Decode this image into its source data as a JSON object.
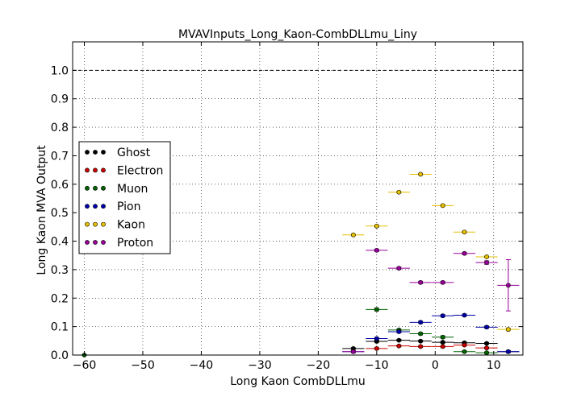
{
  "chart_data": {
    "type": "scatter",
    "title": "MVAVInputs_Long_Kaon-CombDLLmu_Liny",
    "xlabel": "Long Kaon CombDLLmu",
    "ylabel": "Long Kaon MVA Output",
    "xlim": [
      -62,
      15
    ],
    "ylim": [
      0,
      1.1
    ],
    "xticks": [
      -60,
      -50,
      -40,
      -30,
      -20,
      -10,
      0,
      10
    ],
    "yticks": [
      0.0,
      0.1,
      0.2,
      0.3,
      0.4,
      0.5,
      0.6,
      0.7,
      0.8,
      0.9,
      1.0
    ],
    "grid": true,
    "reference_line": 1.0,
    "legend_position": "center-left",
    "series": [
      {
        "name": "Ghost",
        "color": "#000000",
        "x": [
          -14,
          -10,
          -6.2,
          -2.5,
          1.3,
          5,
          8.8,
          12.5
        ],
        "y": [
          0.023,
          0.048,
          0.052,
          0.049,
          0.045,
          0.043,
          0.041,
          0.012
        ],
        "yerr": [
          0.003,
          0.003,
          0.003,
          0.003,
          0.003,
          0.003,
          0.003,
          0.003
        ]
      },
      {
        "name": "Electron",
        "color": "#cc0000",
        "x": [
          -10,
          -6.2,
          -2.5,
          1.3,
          5,
          8.8
        ],
        "y": [
          0.023,
          0.032,
          0.03,
          0.03,
          0.035,
          0.025
        ],
        "yerr": [
          0.003,
          0.003,
          0.003,
          0.003,
          0.003,
          0.003
        ]
      },
      {
        "name": "Muon",
        "color": "#006400",
        "x": [
          -60,
          -10,
          -6.2,
          -2.5,
          1.3,
          5,
          8.8
        ],
        "y": [
          0.0,
          0.16,
          0.088,
          0.075,
          0.063,
          0.012,
          0.008
        ],
        "yerr": [
          0.002,
          0.005,
          0.004,
          0.004,
          0.004,
          0.003,
          0.003
        ]
      },
      {
        "name": "Pion",
        "color": "#0000aa",
        "x": [
          -14,
          -10,
          -6.2,
          -2.5,
          1.3,
          5,
          8.8,
          12.5
        ],
        "y": [
          0.012,
          0.058,
          0.082,
          0.115,
          0.138,
          0.14,
          0.098,
          0.012
        ],
        "yerr": [
          0.003,
          0.004,
          0.004,
          0.004,
          0.004,
          0.004,
          0.004,
          0.004
        ]
      },
      {
        "name": "Kaon",
        "color": "#e6c000",
        "x": [
          -14,
          -10,
          -6.2,
          -2.5,
          1.3,
          5,
          8.8,
          12.5
        ],
        "y": [
          0.422,
          0.453,
          0.572,
          0.635,
          0.525,
          0.432,
          0.345,
          0.09
        ],
        "yerr": [
          0.003,
          0.003,
          0.003,
          0.003,
          0.003,
          0.003,
          0.003,
          0.005
        ]
      },
      {
        "name": "Proton",
        "color": "#990099",
        "x": [
          -14,
          -10,
          -6.2,
          -2.5,
          1.3,
          5,
          8.8,
          12.5
        ],
        "y": [
          0.012,
          0.368,
          0.305,
          0.255,
          0.255,
          0.357,
          0.325,
          0.245
        ],
        "yerr": [
          0.004,
          0.004,
          0.004,
          0.004,
          0.004,
          0.004,
          0.006,
          0.09
        ]
      }
    ],
    "xerr": 1.875
  }
}
